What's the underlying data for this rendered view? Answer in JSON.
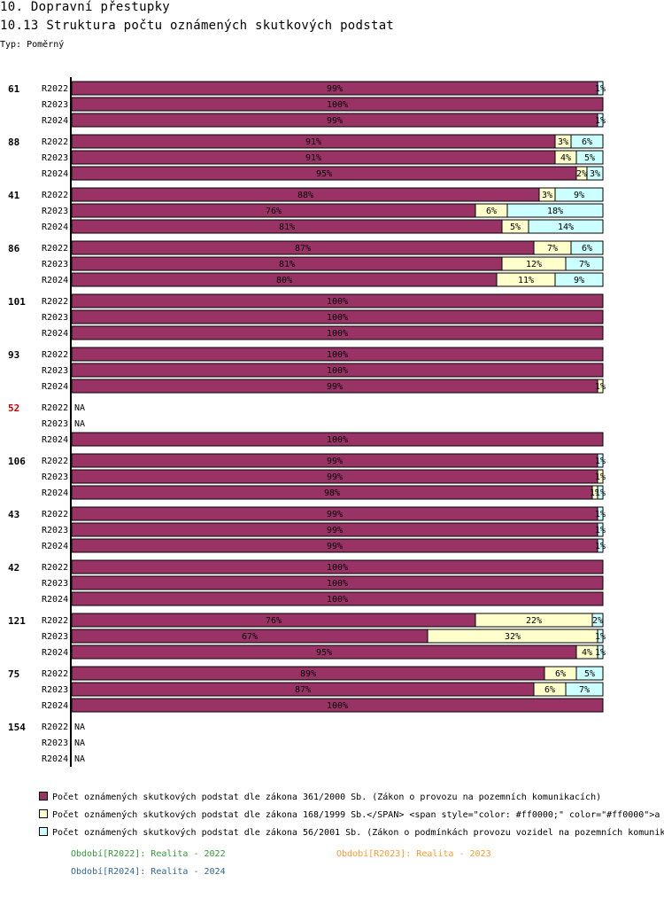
{
  "header": {
    "section": "10. Dopravní přestupky",
    "title": "10.13 Struktura počtu oznámených skutkových podstat",
    "type_label": "Typ: Poměrný"
  },
  "colors": {
    "s1": "#993366",
    "s2": "#ffffcc",
    "s3": "#ccffff",
    "highlight": "#cc0000",
    "period_2022": "#339933",
    "period_2023": "#ff9933",
    "period_2024": "#336699"
  },
  "legend": [
    "Počet oznámených skutkových podstat dle zákona 361/2000 Sb. (Zákon o provozu na pozemních komunikacích)",
    "Počet oznámených skutkových podstat dle zákona 168/1999 Sb.</SPAN> <span style=\"color: #ff0000;\" color=\"#ff0000\">a",
    "Počet oznámených skutkových podstat dle zákona 56/2001 Sb. (Zákon o podmínkách provozu vozidel na pozemních komunik"
  ],
  "periods": {
    "p2022": "Období[R2022]: Realita - 2022",
    "p2023": "Období[R2023]: Realita - 2023",
    "p2024": "Období[R2024]: Realita - 2024"
  },
  "chart_data": {
    "type": "bar",
    "orientation": "horizontal",
    "stacked": true,
    "normalized": true,
    "xlim": [
      0,
      100
    ],
    "series_names": [
      "361/2000 Sb.",
      "168/1999 Sb.",
      "56/2001 Sb."
    ],
    "groups": [
      {
        "label": "61",
        "highlight": false,
        "rows": [
          {
            "period": "R2022",
            "values": [
              99,
              0,
              1
            ],
            "labels": [
              "99%",
              "",
              "1%"
            ]
          },
          {
            "period": "R2023",
            "values": [
              100,
              0,
              0
            ],
            "labels": [
              "100%",
              "",
              ""
            ]
          },
          {
            "period": "R2024",
            "values": [
              99,
              0,
              1
            ],
            "labels": [
              "99%",
              "",
              "1%"
            ]
          }
        ]
      },
      {
        "label": "88",
        "highlight": false,
        "rows": [
          {
            "period": "R2022",
            "values": [
              91,
              3,
              6
            ],
            "labels": [
              "91%",
              "3%",
              "6%"
            ]
          },
          {
            "period": "R2023",
            "values": [
              91,
              4,
              5
            ],
            "labels": [
              "91%",
              "4%",
              "5%"
            ]
          },
          {
            "period": "R2024",
            "values": [
              95,
              2,
              3
            ],
            "labels": [
              "95%",
              "2%",
              "3%"
            ]
          }
        ]
      },
      {
        "label": "41",
        "highlight": false,
        "rows": [
          {
            "period": "R2022",
            "values": [
              88,
              3,
              9
            ],
            "labels": [
              "88%",
              "3%",
              "9%"
            ]
          },
          {
            "period": "R2023",
            "values": [
              76,
              6,
              18
            ],
            "labels": [
              "76%",
              "6%",
              "18%"
            ]
          },
          {
            "period": "R2024",
            "values": [
              81,
              5,
              14
            ],
            "labels": [
              "81%",
              "5%",
              "14%"
            ]
          }
        ]
      },
      {
        "label": "86",
        "highlight": false,
        "rows": [
          {
            "period": "R2022",
            "values": [
              87,
              7,
              6
            ],
            "labels": [
              "87%",
              "7%",
              "6%"
            ]
          },
          {
            "period": "R2023",
            "values": [
              81,
              12,
              7
            ],
            "labels": [
              "81%",
              "12%",
              "7%"
            ]
          },
          {
            "period": "R2024",
            "values": [
              80,
              11,
              9
            ],
            "labels": [
              "80%",
              "11%",
              "9%"
            ]
          }
        ]
      },
      {
        "label": "101",
        "highlight": false,
        "rows": [
          {
            "period": "R2022",
            "values": [
              100,
              0,
              0
            ],
            "labels": [
              "100%",
              "",
              ""
            ]
          },
          {
            "period": "R2023",
            "values": [
              100,
              0,
              0
            ],
            "labels": [
              "100%",
              "",
              ""
            ]
          },
          {
            "period": "R2024",
            "values": [
              100,
              0,
              0
            ],
            "labels": [
              "100%",
              "",
              ""
            ]
          }
        ]
      },
      {
        "label": "93",
        "highlight": false,
        "rows": [
          {
            "period": "R2022",
            "values": [
              100,
              0,
              0
            ],
            "labels": [
              "100%",
              "",
              ""
            ]
          },
          {
            "period": "R2023",
            "values": [
              100,
              0,
              0
            ],
            "labels": [
              "100%",
              "",
              ""
            ]
          },
          {
            "period": "R2024",
            "values": [
              99,
              1,
              0
            ],
            "labels": [
              "99%",
              "1%",
              ""
            ]
          }
        ]
      },
      {
        "label": "52",
        "highlight": true,
        "rows": [
          {
            "period": "R2022",
            "values": null,
            "labels": [
              "NA"
            ]
          },
          {
            "period": "R2023",
            "values": null,
            "labels": [
              "NA"
            ]
          },
          {
            "period": "R2024",
            "values": [
              100,
              0,
              0
            ],
            "labels": [
              "100%",
              "",
              ""
            ]
          }
        ]
      },
      {
        "label": "106",
        "highlight": false,
        "rows": [
          {
            "period": "R2022",
            "values": [
              99,
              0,
              1
            ],
            "labels": [
              "99%",
              "",
              "1%"
            ]
          },
          {
            "period": "R2023",
            "values": [
              99,
              1,
              0
            ],
            "labels": [
              "99%",
              "1%",
              ""
            ]
          },
          {
            "period": "R2024",
            "values": [
              98,
              1,
              1
            ],
            "labels": [
              "98%",
              "1%",
              "1%"
            ]
          }
        ]
      },
      {
        "label": "43",
        "highlight": false,
        "rows": [
          {
            "period": "R2022",
            "values": [
              99,
              0,
              1
            ],
            "labels": [
              "99%",
              "",
              "1%"
            ]
          },
          {
            "period": "R2023",
            "values": [
              99,
              0,
              1
            ],
            "labels": [
              "99%",
              "",
              "1%"
            ]
          },
          {
            "period": "R2024",
            "values": [
              99,
              0,
              1
            ],
            "labels": [
              "99%",
              "",
              "1%"
            ]
          }
        ]
      },
      {
        "label": "42",
        "highlight": false,
        "rows": [
          {
            "period": "R2022",
            "values": [
              100,
              0,
              0
            ],
            "labels": [
              "100%",
              "",
              ""
            ]
          },
          {
            "period": "R2023",
            "values": [
              100,
              0,
              0
            ],
            "labels": [
              "100%",
              "",
              ""
            ]
          },
          {
            "period": "R2024",
            "values": [
              100,
              0,
              0
            ],
            "labels": [
              "100%",
              "",
              ""
            ]
          }
        ]
      },
      {
        "label": "121",
        "highlight": false,
        "rows": [
          {
            "period": "R2022",
            "values": [
              76,
              22,
              2
            ],
            "labels": [
              "76%",
              "22%",
              "2%"
            ]
          },
          {
            "period": "R2023",
            "values": [
              67,
              32,
              1
            ],
            "labels": [
              "67%",
              "32%",
              "1%"
            ]
          },
          {
            "period": "R2024",
            "values": [
              95,
              4,
              1
            ],
            "labels": [
              "95%",
              "4%",
              "1%"
            ]
          }
        ]
      },
      {
        "label": "75",
        "highlight": false,
        "rows": [
          {
            "period": "R2022",
            "values": [
              89,
              6,
              5
            ],
            "labels": [
              "89%",
              "6%",
              "5%"
            ]
          },
          {
            "period": "R2023",
            "values": [
              87,
              6,
              7
            ],
            "labels": [
              "87%",
              "6%",
              "7%"
            ]
          },
          {
            "period": "R2024",
            "values": [
              100,
              0,
              0
            ],
            "labels": [
              "100%",
              "",
              ""
            ]
          }
        ]
      },
      {
        "label": "154",
        "highlight": false,
        "rows": [
          {
            "period": "R2022",
            "values": null,
            "labels": [
              "NA"
            ]
          },
          {
            "period": "R2023",
            "values": null,
            "labels": [
              "NA"
            ]
          },
          {
            "period": "R2024",
            "values": null,
            "labels": [
              "NA"
            ]
          }
        ]
      }
    ]
  }
}
